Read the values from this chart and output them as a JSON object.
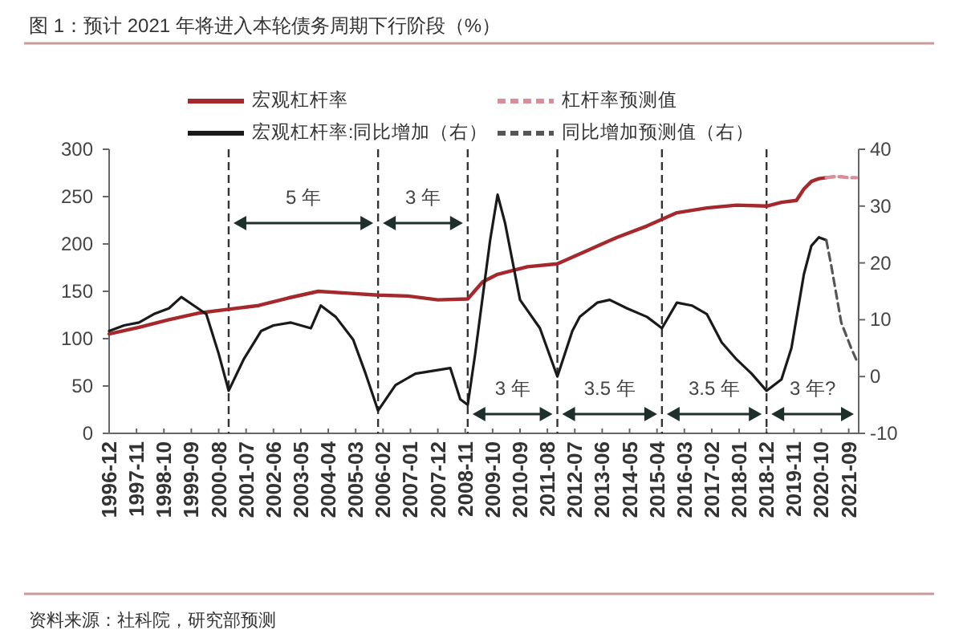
{
  "chart_data": {
    "type": "line",
    "title": "图 1：预计 2021 年将进入本轮债务周期下行阶段（%）",
    "xlim": [
      "1996-12",
      "2022-01"
    ],
    "xticks": [
      "1996-12",
      "1997-11",
      "1998-10",
      "1999-09",
      "2000-08",
      "2001-07",
      "2002-06",
      "2003-05",
      "2004-04",
      "2005-03",
      "2006-02",
      "2007-01",
      "2007-12",
      "2008-11",
      "2009-10",
      "2010-09",
      "2011-08",
      "2012-07",
      "2013-06",
      "2014-05",
      "2015-04",
      "2016-03",
      "2017-02",
      "2018-01",
      "2018-12",
      "2019-11",
      "2020-10",
      "2021-09"
    ],
    "ylim": [
      0,
      300
    ],
    "yticks": [
      0,
      50,
      100,
      150,
      200,
      250,
      300
    ],
    "y2lim": [
      -10,
      40
    ],
    "y2ticks": [
      -10,
      0,
      10,
      20,
      30,
      40
    ],
    "series": [
      {
        "name": "宏观杠杆率",
        "color": "#a5282c",
        "x": [
          "1996-12",
          "1997-12",
          "1998-12",
          "1999-12",
          "2000-12",
          "2001-12",
          "2002-12",
          "2003-12",
          "2004-12",
          "2005-12",
          "2006-12",
          "2007-12",
          "2008-12",
          "2009-06",
          "2009-12",
          "2010-12",
          "2011-12",
          "2012-12",
          "2013-12",
          "2014-12",
          "2015-12",
          "2016-12",
          "2017-12",
          "2018-12",
          "2019-06",
          "2019-12",
          "2020-03",
          "2020-06",
          "2020-09",
          "2020-12"
        ],
        "values": [
          105,
          112,
          120,
          127,
          131,
          135,
          143,
          150,
          148,
          146,
          145,
          141,
          142,
          160,
          168,
          176,
          179,
          193,
          207,
          219,
          233,
          238,
          241,
          240,
          244,
          246,
          258,
          266,
          269,
          270
        ]
      },
      {
        "name": "杠杆率预测值",
        "color": "#d98f9b",
        "line_style": "dashed",
        "x": [
          "2020-12",
          "2021-03",
          "2021-06",
          "2021-09",
          "2021-12"
        ],
        "values": [
          270,
          271,
          271,
          270,
          270
        ]
      },
      {
        "name": "宏观杠杆率:同比增加（右）",
        "color": "#1a1a1a",
        "axis": "y2",
        "x": [
          "1996-12",
          "1997-06",
          "1997-12",
          "1998-06",
          "1998-12",
          "1999-05",
          "1999-10",
          "2000-03",
          "2000-08",
          "2000-12",
          "2001-06",
          "2002-01",
          "2002-06",
          "2003-01",
          "2003-09",
          "2004-01",
          "2004-07",
          "2005-02",
          "2005-07",
          "2005-12",
          "2006-07",
          "2007-03",
          "2007-10",
          "2008-05",
          "2008-09",
          "2008-12",
          "2009-03",
          "2009-06",
          "2009-09",
          "2009-12",
          "2010-03",
          "2010-09",
          "2011-05",
          "2011-12",
          "2012-06",
          "2012-09",
          "2013-04",
          "2013-09",
          "2014-04",
          "2014-12",
          "2015-06",
          "2015-12",
          "2016-06",
          "2016-12",
          "2017-06",
          "2017-12",
          "2018-06",
          "2018-12",
          "2019-06",
          "2019-10",
          "2020-03",
          "2020-06",
          "2020-09",
          "2020-12"
        ],
        "values": [
          8,
          9,
          9.5,
          11,
          12,
          14,
          12.5,
          11,
          4,
          -2.5,
          3,
          8,
          9,
          9.5,
          8.5,
          12.5,
          10.5,
          6.5,
          0.5,
          -6,
          -1.5,
          0.5,
          1,
          1.5,
          -4,
          -5,
          4,
          14,
          24,
          32,
          27,
          13.5,
          8.5,
          0,
          8,
          10.5,
          13,
          13.5,
          12,
          10.5,
          8.5,
          13,
          12.5,
          11,
          6,
          3,
          0.5,
          -2.5,
          -0.5,
          5,
          18,
          23,
          24.5,
          24
        ]
      },
      {
        "name": "同比增加预测值（右）",
        "color": "#555555",
        "axis": "y2",
        "line_style": "dashed",
        "x": [
          "2020-12",
          "2021-02",
          "2021-06",
          "2021-10",
          "2021-12"
        ],
        "values": [
          24,
          19.5,
          9.5,
          5,
          3
        ]
      }
    ],
    "line_style": "solid",
    "legend": "top",
    "ref_lines": [
      {
        "axis": "x",
        "value": "2000-12",
        "color": "#333333",
        "line_style": "dashed"
      },
      {
        "axis": "x",
        "value": "2005-12",
        "color": "#333333",
        "line_style": "dashed"
      },
      {
        "axis": "x",
        "value": "2008-12",
        "color": "#333333",
        "line_style": "dashed"
      },
      {
        "axis": "x",
        "value": "2011-12",
        "color": "#333333",
        "line_style": "dashed"
      },
      {
        "axis": "x",
        "value": "2015-06",
        "color": "#333333",
        "line_style": "dashed"
      },
      {
        "axis": "x",
        "value": "2018-12",
        "color": "#333333",
        "line_style": "dashed"
      }
    ],
    "annotations": [
      "5 年",
      "3 年",
      "3 年",
      "3.5 年",
      "3.5 年",
      "3 年?",
      "资料来源：社科院，研究部预测"
    ]
  }
}
